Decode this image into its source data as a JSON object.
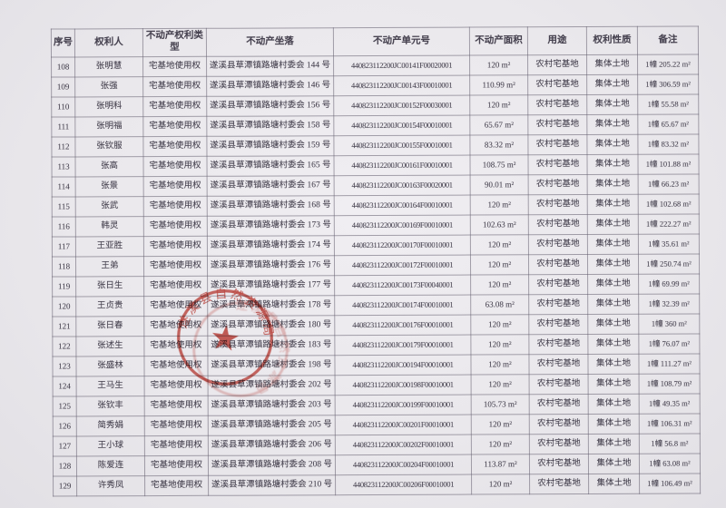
{
  "colors": {
    "paper": "#ebe9ed",
    "ink": "#4e4a55",
    "grid": "#8f8b97",
    "seal_red": "#c2382f"
  },
  "table": {
    "col_keys": [
      "index",
      "holder",
      "right_type",
      "location",
      "unit_no",
      "area",
      "usage",
      "right_nature",
      "remark"
    ],
    "headers": [
      "序号",
      "权利人",
      "不动产权利类型",
      "不动产坐落",
      "不动产单元号",
      "不动产面积",
      "用途",
      "权利性质",
      "备注"
    ],
    "rows": [
      [
        "108",
        "张明慧",
        "宅基地使用权",
        "遂溪县草潭镇路塘村委会 144 号",
        "440823112200JC00141F00020001",
        "120 m²",
        "农村宅基地",
        "集体土地",
        "1幢 205.22 m²"
      ],
      [
        "109",
        "张强",
        "宅基地使用权",
        "遂溪县草潭镇路塘村委会 146 号",
        "440823112200JC00143F00010001",
        "110.99 m²",
        "农村宅基地",
        "集体土地",
        "1幢 306.59 m²"
      ],
      [
        "110",
        "张明科",
        "宅基地使用权",
        "遂溪县草潭镇路塘村委会 156 号",
        "440823112200JC00152F00030001",
        "120 m²",
        "农村宅基地",
        "集体土地",
        "1幢 55.58 m²"
      ],
      [
        "111",
        "张明福",
        "宅基地使用权",
        "遂溪县草潭镇路塘村委会 158 号",
        "440823112200JC00154F00010001",
        "65.67 m²",
        "农村宅基地",
        "集体土地",
        "1幢 65.67 m²"
      ],
      [
        "112",
        "张钦服",
        "宅基地使用权",
        "遂溪县草潭镇路塘村委会 159 号",
        "440823112200JC00155F00010001",
        "83.32 m²",
        "农村宅基地",
        "集体土地",
        "1幢 83.32 m²"
      ],
      [
        "113",
        "张高",
        "宅基地使用权",
        "遂溪县草潭镇路塘村委会 165 号",
        "440823112200JC00161F00010001",
        "108.75 m²",
        "农村宅基地",
        "集体土地",
        "1幢 101.88 m²"
      ],
      [
        "114",
        "张景",
        "宅基地使用权",
        "遂溪县草潭镇路塘村委会 167 号",
        "440823112200JC00163F00020001",
        "90.01 m²",
        "农村宅基地",
        "集体土地",
        "1幢 66.23 m²"
      ],
      [
        "115",
        "张武",
        "宅基地使用权",
        "遂溪县草潭镇路塘村委会 168 号",
        "440823112200JC00164F00010001",
        "120 m²",
        "农村宅基地",
        "集体土地",
        "1幢 102.68 m²"
      ],
      [
        "116",
        "韩灵",
        "宅基地使用权",
        "遂溪县草潭镇路塘村委会 173 号",
        "440823112200JC00169F00010001",
        "102.63 m²",
        "农村宅基地",
        "集体土地",
        "1幢 222.27 m²"
      ],
      [
        "117",
        "王亚胜",
        "宅基地使用权",
        "遂溪县草潭镇路塘村委会 174 号",
        "440823112200JC00170F00010001",
        "120 m²",
        "农村宅基地",
        "集体土地",
        "1幢 35.61 m²"
      ],
      [
        "118",
        "王弟",
        "宅基地使用权",
        "遂溪县草潭镇路塘村委会 176 号",
        "440823112200JC00172F00010001",
        "120 m²",
        "农村宅基地",
        "集体土地",
        "1幢 250.74 m²"
      ],
      [
        "119",
        "张日生",
        "宅基地使用权",
        "遂溪县草潭镇路塘村委会 177 号",
        "440823112200JC00173F00040001",
        "120 m²",
        "农村宅基地",
        "集体土地",
        "1幢 69.99 m²"
      ],
      [
        "120",
        "王贞贵",
        "宅基地使用权",
        "遂溪县草潭镇路塘村委会 178 号",
        "440823112200JC00174F00010001",
        "63.08 m²",
        "农村宅基地",
        "集体土地",
        "1幢 32.39 m²"
      ],
      [
        "121",
        "张日春",
        "宅基地使用权",
        "遂溪县草潭镇路塘村委会 180 号",
        "440823112200JC00176F00010001",
        "120 m²",
        "农村宅基地",
        "集体土地",
        "1幢 360 m²"
      ],
      [
        "122",
        "张述生",
        "宅基地使用权",
        "遂溪县草潭镇路塘村委会 183 号",
        "440823112200JC00179F00010001",
        "120 m²",
        "农村宅基地",
        "集体土地",
        "1幢 76.07 m²"
      ],
      [
        "123",
        "张盛林",
        "宅基地使用权",
        "遂溪县草潭镇路塘村委会 198 号",
        "440823112200JC00194F00010001",
        "120 m²",
        "农村宅基地",
        "集体土地",
        "1幢 111.27 m²"
      ],
      [
        "124",
        "王马生",
        "宅基地使用权",
        "遂溪县草潭镇路塘村委会 202 号",
        "440823112200JC00198F00010001",
        "120 m²",
        "农村宅基地",
        "集体土地",
        "1幢 108.79 m²"
      ],
      [
        "125",
        "张钦丰",
        "宅基地使用权",
        "遂溪县草潭镇路塘村委会 203 号",
        "440823112200JC00199F00010001",
        "105.73 m²",
        "农村宅基地",
        "集体土地",
        "1幢 49.35 m²"
      ],
      [
        "126",
        "简秀娟",
        "宅基地使用权",
        "遂溪县草潭镇路塘村委会 205 号",
        "440823112200JC00201F00010001",
        "120 m²",
        "农村宅基地",
        "集体土地",
        "1幢 106.31 m²"
      ],
      [
        "127",
        "王小球",
        "宅基地使用权",
        "遂溪县草潭镇路塘村委会 206 号",
        "440823112200JC00202F00010001",
        "120 m²",
        "农村宅基地",
        "集体土地",
        "1幢 56.8 m²"
      ],
      [
        "128",
        "陈爱连",
        "宅基地使用权",
        "遂溪县草潭镇路塘村委会 208 号",
        "440823112200JC00204F00010001",
        "113.87 m²",
        "农村宅基地",
        "集体土地",
        "1幢 63.08 m²"
      ],
      [
        "129",
        "许秀凤",
        "宅基地使用权",
        "遂溪县草潭镇路塘村委会 210 号",
        "440823112200JC00206F00010001",
        "120 m²",
        "农村宅基地",
        "集体土地",
        "1幢 106.49 m²"
      ]
    ]
  },
  "seal": {
    "rim_text": "遂溪县自然资源局",
    "star_glyph": "★",
    "color": "#c2382f"
  }
}
